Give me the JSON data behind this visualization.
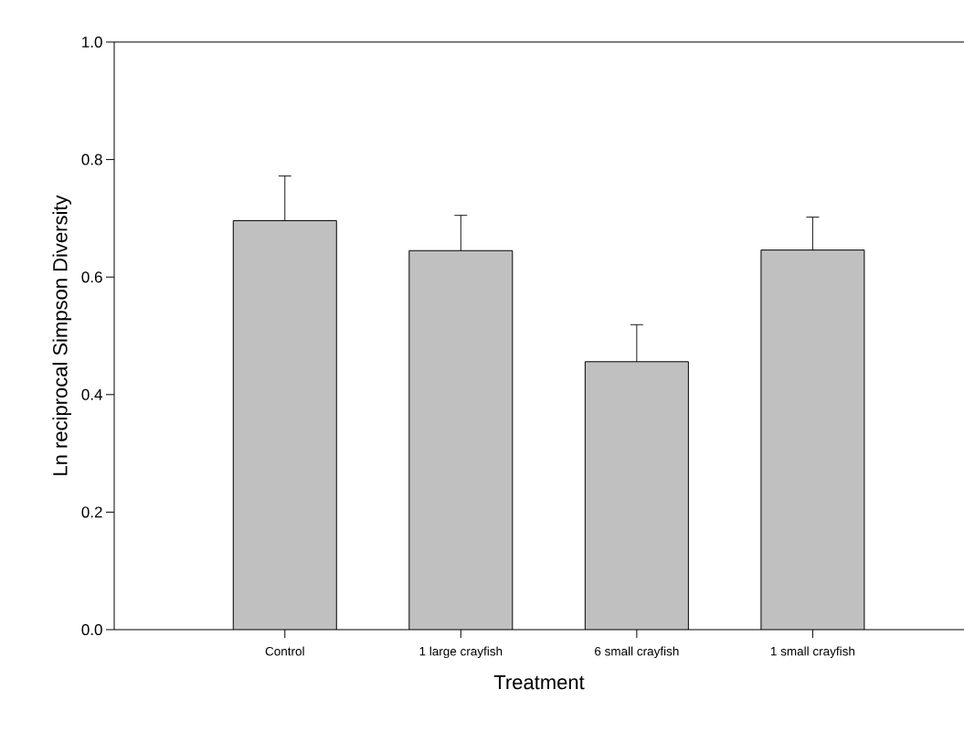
{
  "chart_data": {
    "type": "bar",
    "xlabel": "Treatment",
    "ylabel": "Ln reciprocal Simpson Diversity",
    "categories": [
      "Control",
      "1 large crayfish",
      "6 small crayfish",
      "1 small crayfish"
    ],
    "values": [
      0.696,
      0.645,
      0.456,
      0.646
    ],
    "errors": [
      0.076,
      0.06,
      0.063,
      0.056
    ],
    "color": "#c0c0c0",
    "ylim": [
      0,
      1
    ],
    "yticks": [
      {
        "value": 0,
        "label": "0.0"
      },
      {
        "value": 0.2,
        "label": "0.2"
      },
      {
        "value": 0.4,
        "label": "0.4"
      },
      {
        "value": 0.6,
        "label": "0.6"
      },
      {
        "value": 0.8,
        "label": "0.8"
      },
      {
        "value": 1,
        "label": "1.0"
      }
    ],
    "grid": false
  }
}
